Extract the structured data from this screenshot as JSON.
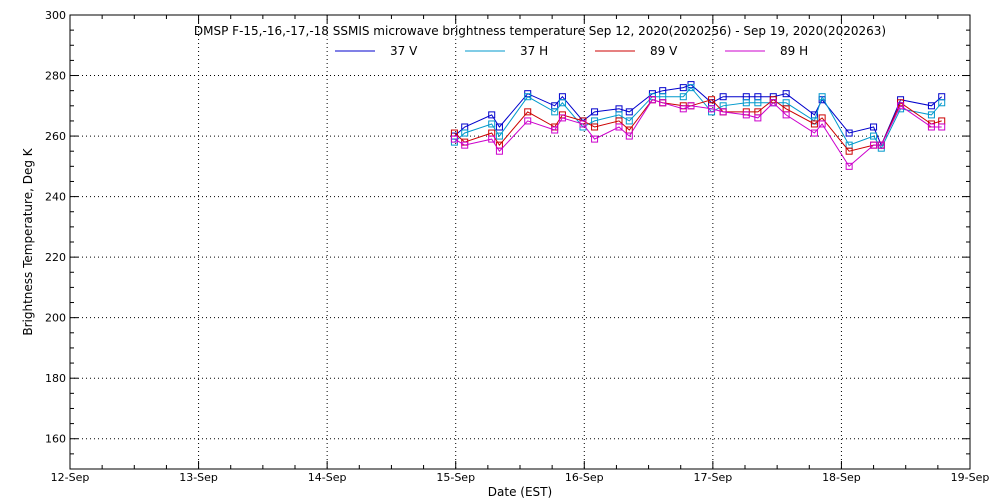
{
  "chart_data": {
    "type": "line",
    "title": "DMSP F-15,-16,-17,-18 SSMIS microwave brightness temperature Sep 12, 2020(2020256) - Sep 19, 2020(2020263)",
    "xlabel": "Date (EST)",
    "ylabel": "Brightness Temperature, Deg K",
    "xlim": [
      0,
      7
    ],
    "ylim": [
      150,
      300
    ],
    "x_tick_labels": [
      "12-Sep",
      "13-Sep",
      "14-Sep",
      "15-Sep",
      "16-Sep",
      "17-Sep",
      "18-Sep",
      "19-Sep"
    ],
    "y_ticks": [
      160,
      180,
      200,
      220,
      240,
      260,
      280,
      300
    ],
    "grid": true,
    "legend_position": "top-center",
    "series": [
      {
        "name": "37 V",
        "color": "#0000cc",
        "x": [
          2.99,
          3.07,
          3.28,
          3.34,
          3.56,
          3.77,
          3.83,
          3.99,
          4.08,
          4.27,
          4.35,
          4.53,
          4.61,
          4.77,
          4.83,
          4.99,
          5.08,
          5.26,
          5.35,
          5.47,
          5.57,
          5.79,
          5.85,
          6.06,
          6.25,
          6.31,
          6.46,
          6.7,
          6.78
        ],
        "y": [
          260,
          263,
          267,
          263,
          274,
          270,
          273,
          265,
          268,
          269,
          268,
          274,
          275,
          276,
          277,
          271,
          273,
          273,
          273,
          273,
          274,
          267,
          272,
          261,
          263,
          257,
          272,
          270,
          273
        ]
      },
      {
        "name": "37 H",
        "color": "#0099cc",
        "x": [
          2.99,
          3.07,
          3.28,
          3.34,
          3.56,
          3.77,
          3.83,
          3.99,
          4.08,
          4.27,
          4.35,
          4.53,
          4.61,
          4.77,
          4.83,
          4.99,
          5.08,
          5.26,
          5.35,
          5.47,
          5.57,
          5.79,
          5.85,
          6.06,
          6.25,
          6.31,
          6.46,
          6.7,
          6.78
        ],
        "y": [
          258,
          261,
          264,
          260,
          273,
          268,
          271,
          263,
          265,
          267,
          265,
          273,
          273,
          273,
          276,
          268,
          270,
          271,
          271,
          271,
          271,
          265,
          273,
          257,
          260,
          256,
          269,
          267,
          271
        ]
      },
      {
        "name": "89 V",
        "color": "#cc0000",
        "x": [
          2.99,
          3.07,
          3.28,
          3.34,
          3.56,
          3.77,
          3.83,
          3.99,
          4.08,
          4.27,
          4.35,
          4.53,
          4.61,
          4.77,
          4.83,
          4.99,
          5.08,
          5.26,
          5.35,
          5.47,
          5.57,
          5.79,
          5.85,
          6.06,
          6.25,
          6.31,
          6.46,
          6.7,
          6.78
        ],
        "y": [
          261,
          258,
          261,
          257,
          268,
          263,
          267,
          265,
          263,
          265,
          262,
          272,
          271,
          270,
          270,
          272,
          268,
          268,
          268,
          272,
          269,
          264,
          266,
          255,
          257,
          257,
          271,
          264,
          265
        ]
      },
      {
        "name": "89 H",
        "color": "#cc00cc",
        "x": [
          2.99,
          3.07,
          3.28,
          3.34,
          3.56,
          3.77,
          3.83,
          3.99,
          4.08,
          4.27,
          4.35,
          4.53,
          4.61,
          4.77,
          4.83,
          4.99,
          5.08,
          5.26,
          5.35,
          5.47,
          5.57,
          5.79,
          5.85,
          6.06,
          6.25,
          6.31,
          6.46,
          6.7,
          6.78
        ],
        "y": [
          259,
          257,
          259,
          255,
          265,
          262,
          266,
          264,
          259,
          263,
          260,
          272,
          271,
          269,
          270,
          269,
          268,
          267,
          266,
          271,
          267,
          261,
          264,
          250,
          257,
          257,
          270,
          263,
          263
        ]
      }
    ]
  }
}
